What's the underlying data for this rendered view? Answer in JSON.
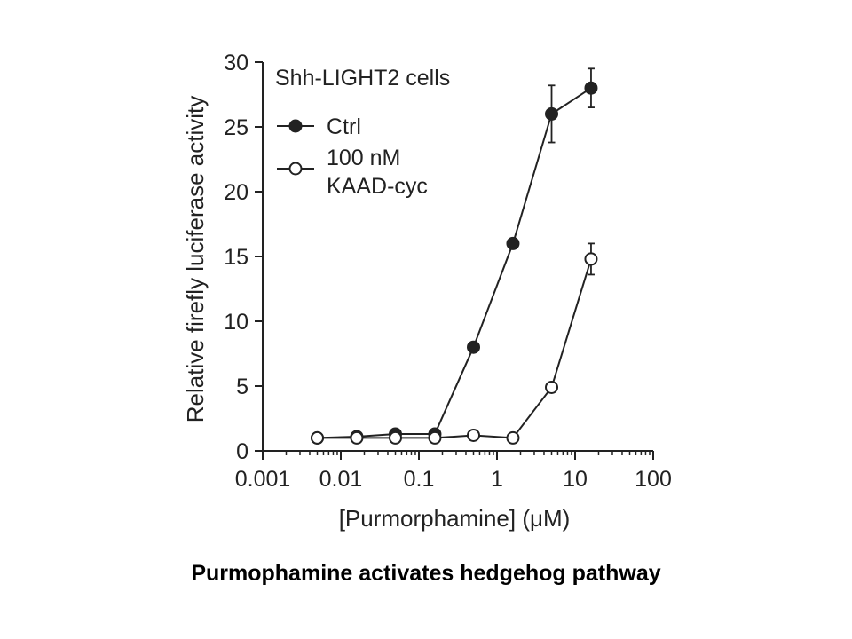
{
  "caption": "Purmophamine activates hedgehog pathway",
  "chart_data": {
    "type": "line",
    "title": "Shh-LIGHT2 cells",
    "xlabel": "[Purmorphamine] (μM)",
    "ylabel": "Relative firefly luciferase activity",
    "xscale": "log",
    "xlim": [
      0.001,
      100
    ],
    "ylim": [
      0,
      30
    ],
    "xticks": [
      0.001,
      0.01,
      0.1,
      1,
      10,
      100
    ],
    "xtick_labels": [
      "0.001",
      "0.01",
      "0.1",
      "1",
      "10",
      "100"
    ],
    "yticks": [
      0,
      5,
      10,
      15,
      20,
      25,
      30
    ],
    "ytick_labels": [
      "0",
      "5",
      "10",
      "15",
      "20",
      "25",
      "30"
    ],
    "grid": false,
    "legend": "top-left",
    "series": [
      {
        "name": "Ctrl",
        "marker": "filled-circle",
        "x": [
          0.005,
          0.016,
          0.05,
          0.16,
          0.5,
          1.6,
          5,
          16
        ],
        "y": [
          1.0,
          1.1,
          1.3,
          1.3,
          8.0,
          16.0,
          26.0,
          28.0
        ],
        "err": [
          0,
          0,
          0,
          0,
          0,
          0,
          2.2,
          1.5
        ]
      },
      {
        "name": "100 nM\nKAAD-cyc",
        "marker": "open-circle",
        "x": [
          0.005,
          0.016,
          0.05,
          0.16,
          0.5,
          1.6,
          5,
          16
        ],
        "y": [
          1.0,
          1.0,
          1.0,
          1.0,
          1.2,
          1.0,
          4.9,
          14.8
        ],
        "err": [
          0,
          0,
          0,
          0,
          0,
          0,
          0,
          1.2
        ]
      }
    ]
  }
}
